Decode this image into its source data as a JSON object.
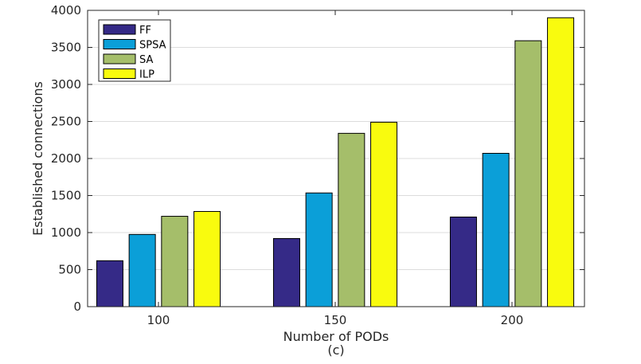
{
  "chart_data": {
    "type": "bar",
    "categories": [
      "100",
      "150",
      "200"
    ],
    "series": [
      {
        "name": "FF",
        "color": "#352A87",
        "values": [
          620,
          920,
          1210
        ]
      },
      {
        "name": "SPSA",
        "color": "#0B9FD8",
        "values": [
          975,
          1535,
          2070
        ]
      },
      {
        "name": "SA",
        "color": "#A5BE6A",
        "values": [
          1220,
          2340,
          3590
        ]
      },
      {
        "name": "ILP",
        "color": "#F9FB0E",
        "values": [
          1285,
          2490,
          3900
        ]
      }
    ],
    "title": "",
    "caption": "(c)",
    "xlabel": "Number of PODs",
    "ylabel": "Established connections",
    "ylim": [
      0,
      4000
    ],
    "yticks": [
      0,
      500,
      1000,
      1500,
      2000,
      2500,
      3000,
      3500,
      4000
    ],
    "grid": true,
    "legend_position": "top-left"
  }
}
